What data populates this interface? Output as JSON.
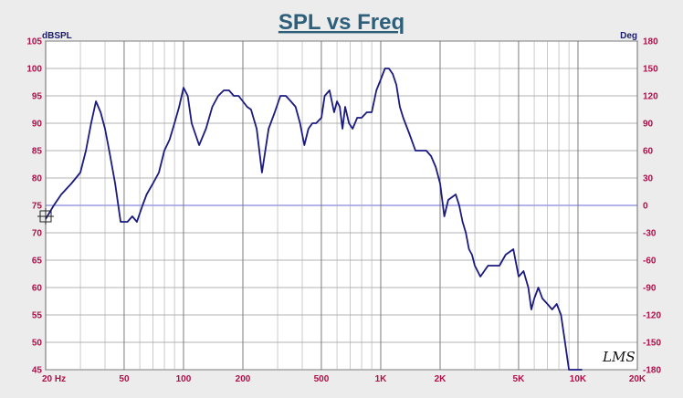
{
  "chart_data": {
    "type": "line",
    "title": "SPL vs Freq",
    "ylabel": "dBSPL",
    "y2label": "Deg",
    "ylim": [
      45,
      105
    ],
    "y2lim": [
      -180,
      180
    ],
    "xlim": [
      20,
      20000
    ],
    "xscale": "log",
    "grid": true,
    "yticks": [
      105,
      100,
      95,
      90,
      85,
      80,
      75,
      70,
      65,
      60,
      55,
      50,
      45
    ],
    "y2ticks": [
      180,
      150,
      120,
      90,
      60,
      30,
      0,
      -30,
      -60,
      -90,
      -120,
      -150,
      -180
    ],
    "xticks": [
      {
        "v": 20,
        "label": "20 Hz"
      },
      {
        "v": 50,
        "label": "50"
      },
      {
        "v": 100,
        "label": "100"
      },
      {
        "v": 200,
        "label": "200"
      },
      {
        "v": 500,
        "label": "500"
      },
      {
        "v": 1000,
        "label": "1K"
      },
      {
        "v": 2000,
        "label": "2K"
      },
      {
        "v": 5000,
        "label": "5K"
      },
      {
        "v": 10000,
        "label": "10K"
      },
      {
        "v": 20000,
        "label": "20K"
      }
    ],
    "series": [
      {
        "color": "#1a1a80",
        "x": [
          20,
          22,
          24,
          27,
          30,
          32,
          34,
          36,
          38,
          40,
          42,
          45,
          48,
          52,
          55,
          58,
          62,
          65,
          70,
          75,
          80,
          85,
          90,
          95,
          100,
          105,
          110,
          120,
          130,
          140,
          150,
          160,
          170,
          180,
          190,
          200,
          210,
          220,
          235,
          250,
          270,
          290,
          310,
          330,
          350,
          370,
          390,
          410,
          430,
          450,
          470,
          500,
          520,
          550,
          580,
          600,
          620,
          640,
          660,
          690,
          720,
          760,
          800,
          850,
          900,
          950,
          1000,
          1050,
          1100,
          1150,
          1200,
          1250,
          1300,
          1400,
          1500,
          1600,
          1700,
          1800,
          1900,
          2000,
          2100,
          2200,
          2400,
          2500,
          2600,
          2700,
          2800,
          2900,
          3000,
          3200,
          3500,
          4000,
          4300,
          4700,
          5000,
          5300,
          5600,
          5800,
          6000,
          6300,
          6600,
          7000,
          7400,
          7800,
          8200,
          8600,
          9000,
          9500,
          10000,
          10500
        ],
        "y": [
          72.5,
          75,
          77,
          79,
          81,
          85,
          90,
          94,
          92,
          89,
          85,
          79,
          72,
          72,
          73,
          72,
          75,
          77,
          79,
          81,
          85,
          87,
          90,
          93,
          96.5,
          95,
          90,
          86,
          89,
          93,
          95,
          96,
          96,
          95,
          95,
          94,
          93,
          92.5,
          89,
          81,
          89,
          92,
          95,
          95,
          94,
          93,
          90,
          86,
          89,
          90,
          90,
          91,
          95,
          96,
          92,
          94,
          93,
          89,
          93,
          90,
          89,
          91,
          91,
          92,
          92,
          96,
          98,
          100,
          100,
          99,
          97,
          93,
          91,
          88,
          85,
          85,
          85,
          84,
          82,
          79,
          73,
          76,
          77,
          75,
          72,
          70,
          67,
          66,
          64,
          62,
          64,
          64,
          66,
          67,
          62,
          63,
          60,
          56,
          58,
          60,
          58,
          57,
          56,
          57,
          55,
          50,
          45,
          45,
          45,
          45
        ]
      }
    ],
    "cursor": {
      "x": 20,
      "y": 73
    }
  },
  "logo_text": "LMS"
}
